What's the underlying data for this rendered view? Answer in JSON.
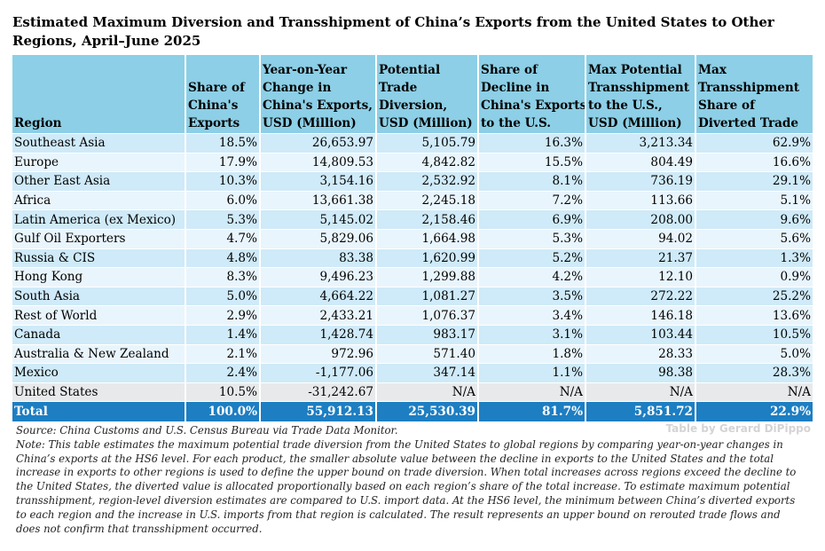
{
  "title": "Estimated Maximum Diversion and Transshipment of China’s Exports from the United States to Other Regions, April–June 2025",
  "table": {
    "headers": [
      "Region",
      "Share of\nChina's\nExports",
      "Year-on-Year\nChange in\nChina's Exports,\nUSD (Million)",
      "Potential\nTrade\nDiversion,\nUSD (Million)",
      "Share of\nDecline in\nChina's Exports\nto the U.S.",
      "Max Potential\nTransshipment\nto the U.S.,\nUSD (Million)",
      "Max\nTransshipment\nShare of\nDiverted Trade"
    ],
    "rows": [
      [
        "Southeast Asia",
        "18.5%",
        "26,653.97",
        "5,105.79",
        "16.3%",
        "3,213.34",
        "62.9%"
      ],
      [
        "Europe",
        "17.9%",
        "14,809.53",
        "4,842.82",
        "15.5%",
        "804.49",
        "16.6%"
      ],
      [
        "Other East Asia",
        "10.3%",
        "3,154.16",
        "2,532.92",
        "8.1%",
        "736.19",
        "29.1%"
      ],
      [
        "Africa",
        "6.0%",
        "13,661.38",
        "2,245.18",
        "7.2%",
        "113.66",
        "5.1%"
      ],
      [
        "Latin America (ex Mexico)",
        "5.3%",
        "5,145.02",
        "2,158.46",
        "6.9%",
        "208.00",
        "9.6%"
      ],
      [
        "Gulf Oil Exporters",
        "4.7%",
        "5,829.06",
        "1,664.98",
        "5.3%",
        "94.02",
        "5.6%"
      ],
      [
        "Russia & CIS",
        "4.8%",
        "83.38",
        "1,620.99",
        "5.2%",
        "21.37",
        "1.3%"
      ],
      [
        "Hong Kong",
        "8.3%",
        "9,496.23",
        "1,299.88",
        "4.2%",
        "12.10",
        "0.9%"
      ],
      [
        "South Asia",
        "5.0%",
        "4,664.22",
        "1,081.27",
        "3.5%",
        "272.22",
        "25.2%"
      ],
      [
        "Rest of World",
        "2.9%",
        "2,433.21",
        "1,076.37",
        "3.4%",
        "146.18",
        "13.6%"
      ],
      [
        "Canada",
        "1.4%",
        "1,428.74",
        "983.17",
        "3.1%",
        "103.44",
        "10.5%"
      ],
      [
        "Australia & New Zealand",
        "2.1%",
        "972.96",
        "571.40",
        "1.8%",
        "28.33",
        "5.0%"
      ],
      [
        "Mexico",
        "2.4%",
        "-1,177.06",
        "347.14",
        "1.1%",
        "98.38",
        "28.3%"
      ],
      [
        "United States",
        "10.5%",
        "-31,242.67",
        "N/A",
        "N/A",
        "N/A",
        "N/A"
      ]
    ],
    "total": [
      "Total",
      "100.0%",
      "55,912.13",
      "25,530.39",
      "81.7%",
      "5,851.72",
      "22.9%"
    ]
  },
  "credit": "Table by Gerard DiPippo",
  "source": "Source: China Customs and U.S. Census Bureau via Trade Data Monitor.",
  "note": "Note: This table estimates the maximum potential trade diversion from the United States to global regions by comparing year-on-year changes in China’s exports at the HS6 level. For each product, the smaller absolute value between the decline in exports to the United States and the total increase in exports to other regions is used to define the upper bound on trade diversion. When total increases across regions exceed the decline to the United States, the diverted value is allocated proportionally based on each region’s share of the total increase. To estimate maximum potential transshipment, region-level diversion estimates are compared to U.S. import data. At the HS6 level, the minimum between China’s diverted exports to each region and the increase in U.S. imports from that region is calculated. The result represents an upper bound on rerouted trade flows and does not confirm that transshipment occurred.",
  "colors": {
    "header_bg": "#8ccfe6",
    "row_odd": "#cfeaf8",
    "row_even": "#e9f5fc",
    "row_us": "#e8e9ea",
    "total_bg": "#1d7ec2"
  }
}
